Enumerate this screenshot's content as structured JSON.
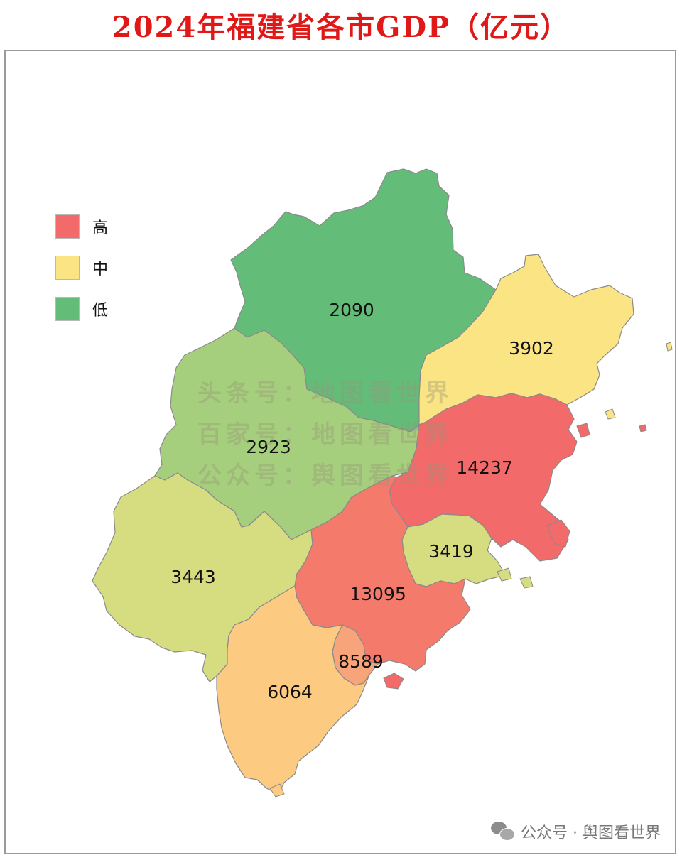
{
  "title": "2024年福建省各市GDP（亿元）",
  "legend": [
    {
      "label": "高",
      "color": "#f26a6a"
    },
    {
      "label": "中",
      "color": "#fbe484"
    },
    {
      "label": "低",
      "color": "#64bc79"
    }
  ],
  "regions": [
    {
      "id": "north",
      "value": "2090",
      "color": "#64bc79"
    },
    {
      "id": "northeast",
      "value": "3902",
      "color": "#fbe484"
    },
    {
      "id": "northwest",
      "value": "2923",
      "color": "#a6cf7d"
    },
    {
      "id": "east-coast",
      "value": "14237",
      "color": "#f26a6a"
    },
    {
      "id": "west",
      "value": "3443",
      "color": "#d6dc80"
    },
    {
      "id": "central-coast",
      "value": "3419",
      "color": "#d6dc80"
    },
    {
      "id": "south-central",
      "value": "13095",
      "color": "#f47a6c"
    },
    {
      "id": "south-inset",
      "value": "8589",
      "color": "#f7a47a"
    },
    {
      "id": "south",
      "value": "6064",
      "color": "#fcca80"
    }
  ],
  "watermark": [
    "头条号：地图看世界",
    "百家号：地图看世界",
    "公众号：舆图看世界"
  ],
  "footer": {
    "text": "公众号 · 舆图看世界",
    "icon": "wechat-icon"
  }
}
